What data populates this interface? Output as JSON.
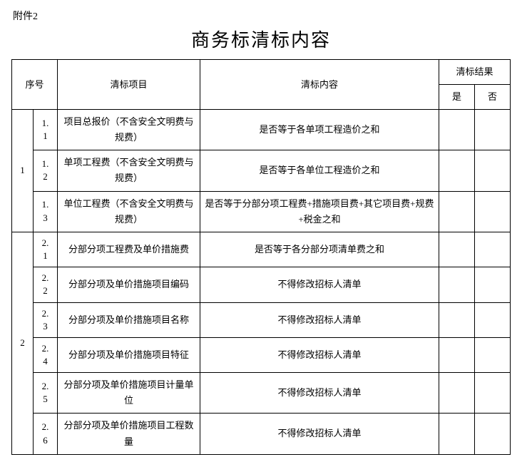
{
  "attachment_label": "附件2",
  "title": "商务标清标内容",
  "headers": {
    "seq": "序号",
    "item": "清标项目",
    "content": "清标内容",
    "result": "清标结果",
    "yes": "是",
    "no": "否"
  },
  "groups": [
    {
      "group_no": "1",
      "rows": [
        {
          "sub_a": "1.",
          "sub_b": "1",
          "item": "项目总报价（不含安全文明费与规费）",
          "content": "是否等于各单项工程造价之和",
          "yes": "",
          "no": ""
        },
        {
          "sub_a": "1.",
          "sub_b": "2",
          "item": "单项工程费（不含安全文明费与规费）",
          "content": "是否等于各单位工程造价之和",
          "yes": "",
          "no": ""
        },
        {
          "sub_a": "1.",
          "sub_b": "3",
          "item": "单位工程费（不含安全文明费与规费）",
          "content": "是否等于分部分项工程费+措施项目费+其它项目费+规费+税金之和",
          "yes": "",
          "no": ""
        }
      ]
    },
    {
      "group_no": "2",
      "rows": [
        {
          "sub_a": "2.",
          "sub_b": "1",
          "item": "分部分项工程费及单价措施费",
          "content": "是否等于各分部分项清单费之和",
          "yes": "",
          "no": ""
        },
        {
          "sub_a": "2.",
          "sub_b": "2",
          "item": "分部分项及单价措施项目编码",
          "content": "不得修改招标人清单",
          "yes": "",
          "no": ""
        },
        {
          "sub_a": "2.",
          "sub_b": "3",
          "item": "分部分项及单价措施项目名称",
          "content": "不得修改招标人清单",
          "yes": "",
          "no": ""
        },
        {
          "sub_a": "2.",
          "sub_b": "4",
          "item": "分部分项及单价措施项目特征",
          "content": "不得修改招标人清单",
          "yes": "",
          "no": ""
        },
        {
          "sub_a": "2.",
          "sub_b": "5",
          "item": "分部分项及单价措施项目计量单位",
          "content": "不得修改招标人清单",
          "yes": "",
          "no": ""
        },
        {
          "sub_a": "2.",
          "sub_b": "6",
          "item": "分部分项及单价措施项目工程数量",
          "content": "不得修改招标人清单",
          "yes": "",
          "no": ""
        }
      ]
    }
  ]
}
